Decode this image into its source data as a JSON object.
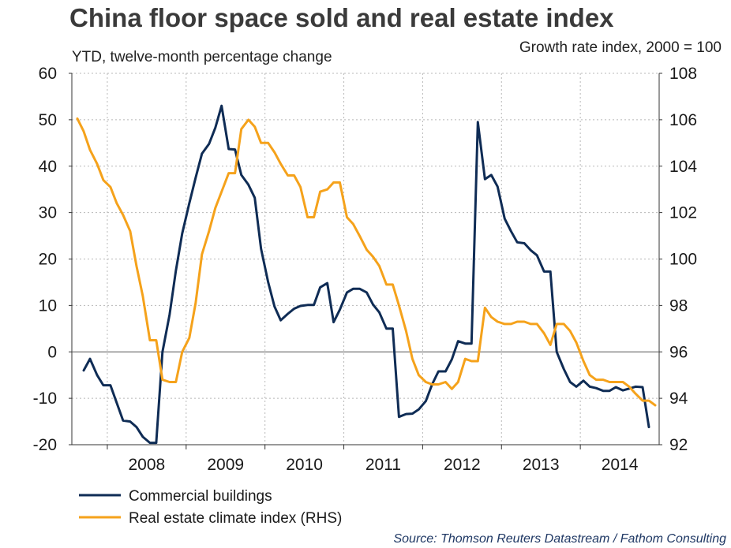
{
  "chart_data": {
    "type": "line",
    "title": "China floor space sold and real estate index",
    "left_axis_label": "YTD, twelve-month percentage change",
    "right_axis_label": "Growth rate index, 2000 = 100",
    "source": "Source: Thomson Reuters Datastream / Fathom Consulting",
    "x_range": [
      2007.55,
      2015.0
    ],
    "left_ylim": [
      -20,
      60
    ],
    "left_ticks": [
      -20,
      -10,
      0,
      10,
      20,
      30,
      40,
      50,
      60
    ],
    "right_ylim": [
      92,
      108
    ],
    "right_ticks": [
      92,
      94,
      96,
      98,
      100,
      102,
      104,
      106,
      108
    ],
    "x_tick_labels": [
      {
        "label": "2008",
        "year": 2008
      },
      {
        "label": "2009",
        "year": 2009
      },
      {
        "label": "2010",
        "year": 2010
      },
      {
        "label": "2011",
        "year": 2011
      },
      {
        "label": "2012",
        "year": 2012
      },
      {
        "label": "2013",
        "year": 2013
      },
      {
        "label": "2014",
        "year": 2014
      }
    ],
    "series": [
      {
        "name": "Commercial buildings",
        "axis": "left",
        "color": "#0f2c55",
        "points": [
          [
            2007.7,
            -4
          ],
          [
            2007.78,
            -1.5
          ],
          [
            2007.87,
            -5
          ],
          [
            2007.95,
            -7.2
          ],
          [
            2008.04,
            -7.2
          ],
          [
            2008.12,
            -11
          ],
          [
            2008.2,
            -14.8
          ],
          [
            2008.29,
            -15
          ],
          [
            2008.37,
            -16.2
          ],
          [
            2008.45,
            -18.3
          ],
          [
            2008.54,
            -19.6
          ],
          [
            2008.62,
            -19.6
          ],
          [
            2008.7,
            0
          ],
          [
            2008.79,
            8
          ],
          [
            2008.87,
            17.5
          ],
          [
            2008.95,
            25.5
          ],
          [
            2009.04,
            32
          ],
          [
            2009.12,
            37.5
          ],
          [
            2009.2,
            42.7
          ],
          [
            2009.29,
            44.8
          ],
          [
            2009.37,
            48.3
          ],
          [
            2009.45,
            53
          ],
          [
            2009.54,
            43.7
          ],
          [
            2009.62,
            43.6
          ],
          [
            2009.7,
            38.1
          ],
          [
            2009.79,
            36
          ],
          [
            2009.87,
            33.2
          ],
          [
            2009.95,
            22.2
          ],
          [
            2010.04,
            15
          ],
          [
            2010.12,
            9.8
          ],
          [
            2010.2,
            6.8
          ],
          [
            2010.29,
            8.2
          ],
          [
            2010.37,
            9.3
          ],
          [
            2010.45,
            9.9
          ],
          [
            2010.54,
            10.1
          ],
          [
            2010.62,
            10.1
          ],
          [
            2010.7,
            13.9
          ],
          [
            2010.79,
            14.8
          ],
          [
            2010.87,
            6.4
          ],
          [
            2010.95,
            9.1
          ],
          [
            2011.04,
            12.8
          ],
          [
            2011.12,
            13.6
          ],
          [
            2011.2,
            13.6
          ],
          [
            2011.29,
            12.8
          ],
          [
            2011.37,
            10.2
          ],
          [
            2011.45,
            8.5
          ],
          [
            2011.54,
            5
          ],
          [
            2011.62,
            5
          ],
          [
            2011.7,
            -14
          ],
          [
            2011.79,
            -13.4
          ],
          [
            2011.87,
            -13.3
          ],
          [
            2011.95,
            -12.4
          ],
          [
            2012.04,
            -10.6
          ],
          [
            2012.12,
            -7
          ],
          [
            2012.2,
            -4.2
          ],
          [
            2012.29,
            -4.2
          ],
          [
            2012.37,
            -1.6
          ],
          [
            2012.45,
            2.3
          ],
          [
            2012.54,
            1.8
          ],
          [
            2012.62,
            1.8
          ],
          [
            2012.7,
            49.5
          ],
          [
            2012.79,
            37.2
          ],
          [
            2012.87,
            38.1
          ],
          [
            2012.95,
            35.6
          ],
          [
            2013.04,
            28.7
          ],
          [
            2013.12,
            26
          ],
          [
            2013.2,
            23.6
          ],
          [
            2013.29,
            23.4
          ],
          [
            2013.37,
            21.9
          ],
          [
            2013.45,
            20.8
          ],
          [
            2013.54,
            17.3
          ],
          [
            2013.62,
            17.3
          ],
          [
            2013.7,
            0
          ],
          [
            2013.79,
            -3.7
          ],
          [
            2013.87,
            -6.5
          ],
          [
            2013.95,
            -7.5
          ],
          [
            2014.04,
            -6.2
          ],
          [
            2014.12,
            -7.5
          ],
          [
            2014.2,
            -7.8
          ],
          [
            2014.29,
            -8.4
          ],
          [
            2014.37,
            -8.4
          ],
          [
            2014.45,
            -7.6
          ],
          [
            2014.54,
            -8.3
          ],
          [
            2014.62,
            -7.9
          ],
          [
            2014.7,
            -7.5
          ],
          [
            2014.79,
            -7.6
          ],
          [
            2014.87,
            -16.2
          ]
        ]
      },
      {
        "name": "Real estate climate index (RHS)",
        "axis": "right",
        "color": "#f5a21b",
        "points": [
          [
            2007.62,
            106.05
          ],
          [
            2007.7,
            105.5
          ],
          [
            2007.78,
            104.7
          ],
          [
            2007.87,
            104.1
          ],
          [
            2007.95,
            103.4
          ],
          [
            2008.04,
            103.1
          ],
          [
            2008.12,
            102.4
          ],
          [
            2008.2,
            101.9
          ],
          [
            2008.29,
            101.2
          ],
          [
            2008.37,
            99.7
          ],
          [
            2008.45,
            98.4
          ],
          [
            2008.54,
            96.5
          ],
          [
            2008.62,
            96.5
          ],
          [
            2008.7,
            94.8
          ],
          [
            2008.79,
            94.7
          ],
          [
            2008.87,
            94.7
          ],
          [
            2008.95,
            96
          ],
          [
            2009.04,
            96.6
          ],
          [
            2009.12,
            98.1
          ],
          [
            2009.2,
            100.2
          ],
          [
            2009.29,
            101.2
          ],
          [
            2009.37,
            102.2
          ],
          [
            2009.45,
            102.9
          ],
          [
            2009.54,
            103.7
          ],
          [
            2009.62,
            103.7
          ],
          [
            2009.7,
            105.6
          ],
          [
            2009.79,
            106
          ],
          [
            2009.87,
            105.7
          ],
          [
            2009.95,
            105
          ],
          [
            2010.04,
            105
          ],
          [
            2010.12,
            104.6
          ],
          [
            2010.2,
            104.1
          ],
          [
            2010.29,
            103.6
          ],
          [
            2010.37,
            103.6
          ],
          [
            2010.45,
            103.1
          ],
          [
            2010.54,
            101.8
          ],
          [
            2010.62,
            101.8
          ],
          [
            2010.7,
            102.9
          ],
          [
            2010.79,
            103
          ],
          [
            2010.87,
            103.3
          ],
          [
            2010.95,
            103.3
          ],
          [
            2011.04,
            101.8
          ],
          [
            2011.12,
            101.5
          ],
          [
            2011.2,
            101
          ],
          [
            2011.29,
            100.4
          ],
          [
            2011.37,
            100.1
          ],
          [
            2011.45,
            99.7
          ],
          [
            2011.54,
            98.9
          ],
          [
            2011.62,
            98.9
          ],
          [
            2011.7,
            98
          ],
          [
            2011.79,
            96.9
          ],
          [
            2011.87,
            95.7
          ],
          [
            2011.95,
            95
          ],
          [
            2012.04,
            94.7
          ],
          [
            2012.12,
            94.6
          ],
          [
            2012.2,
            94.6
          ],
          [
            2012.29,
            94.7
          ],
          [
            2012.37,
            94.4
          ],
          [
            2012.45,
            94.7
          ],
          [
            2012.54,
            95.7
          ],
          [
            2012.62,
            95.6
          ],
          [
            2012.7,
            95.6
          ],
          [
            2012.79,
            97.9
          ],
          [
            2012.87,
            97.5
          ],
          [
            2012.95,
            97.3
          ],
          [
            2013.04,
            97.2
          ],
          [
            2013.12,
            97.2
          ],
          [
            2013.2,
            97.3
          ],
          [
            2013.29,
            97.3
          ],
          [
            2013.37,
            97.2
          ],
          [
            2013.45,
            97.2
          ],
          [
            2013.54,
            96.8
          ],
          [
            2013.62,
            96.3
          ],
          [
            2013.7,
            97.2
          ],
          [
            2013.79,
            97.2
          ],
          [
            2013.87,
            96.9
          ],
          [
            2013.95,
            96.4
          ],
          [
            2014.04,
            95.6
          ],
          [
            2014.12,
            95
          ],
          [
            2014.2,
            94.8
          ],
          [
            2014.29,
            94.8
          ],
          [
            2014.37,
            94.7
          ],
          [
            2014.45,
            94.7
          ],
          [
            2014.54,
            94.7
          ],
          [
            2014.62,
            94.5
          ],
          [
            2014.7,
            94.2
          ],
          [
            2014.79,
            93.9
          ],
          [
            2014.87,
            93.9
          ],
          [
            2014.95,
            93.7
          ]
        ]
      }
    ],
    "legend": [
      "Commercial buildings",
      "Real estate climate index (RHS)"
    ],
    "grid": true,
    "legend_position": "bottom-left"
  }
}
